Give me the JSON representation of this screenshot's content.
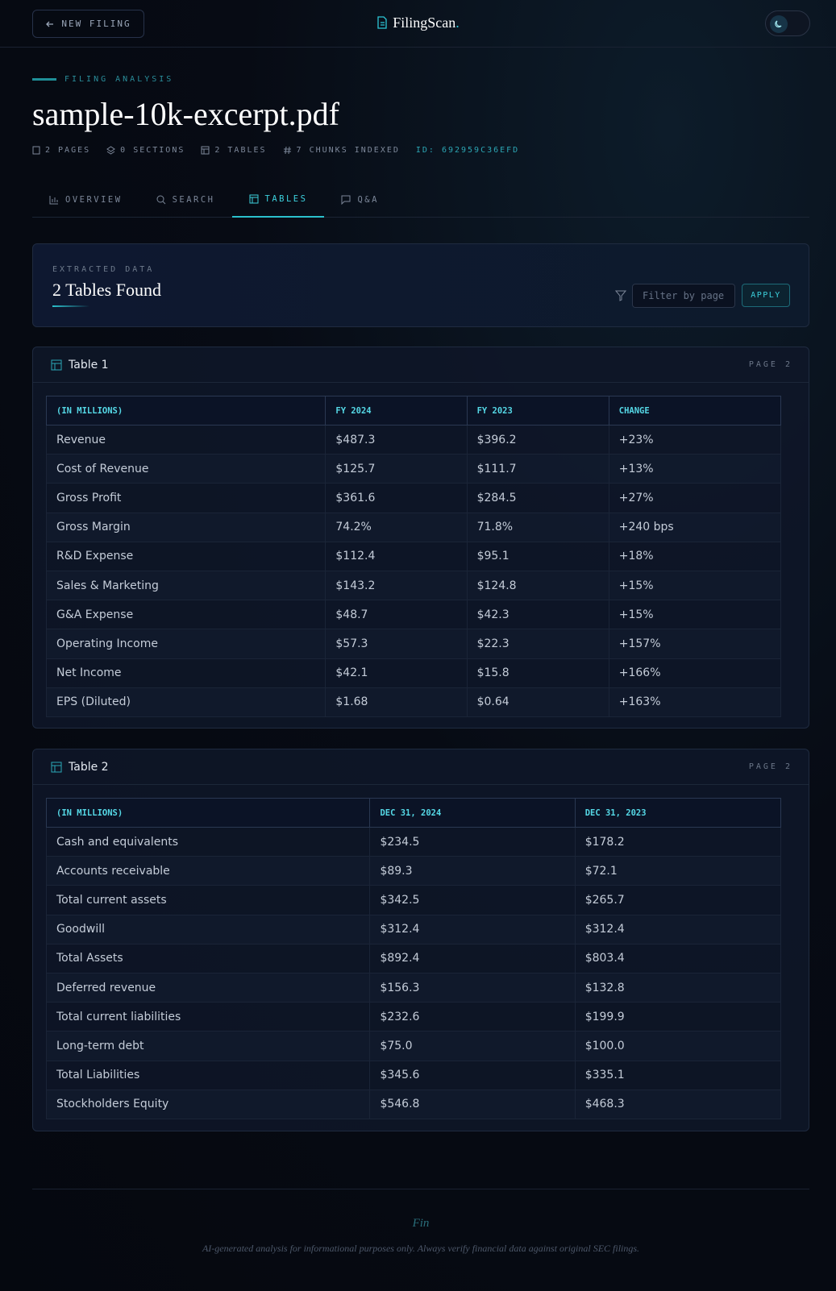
{
  "header": {
    "new_filing": "NEW FILING",
    "brand": "FilingScan",
    "brand_dot": "."
  },
  "hero": {
    "eyebrow": "FILING ANALYSIS",
    "title": "sample-10k-excerpt.pdf",
    "meta": [
      "2 PAGES",
      "0 SECTIONS",
      "2 TABLES",
      "7 CHUNKS INDEXED"
    ],
    "id": "ID: 692959C36EFD"
  },
  "tabs": [
    "OVERVIEW",
    "SEARCH",
    "TABLES",
    "Q&A"
  ],
  "panel": {
    "eyebrow": "EXTRACTED DATA",
    "title": "2 Tables Found",
    "filter_placeholder": "Filter by page",
    "apply": "APPLY"
  },
  "tables": [
    {
      "title": "Table 1",
      "page": "PAGE 2",
      "headers": [
        "(IN MILLIONS)",
        "FY 2024",
        "FY 2023",
        "CHANGE"
      ],
      "rows": [
        [
          "Revenue",
          "$487.3",
          "$396.2",
          "+23%"
        ],
        [
          "Cost of Revenue",
          "$125.7",
          "$111.7",
          "+13%"
        ],
        [
          "Gross Profit",
          "$361.6",
          "$284.5",
          "+27%"
        ],
        [
          "Gross Margin",
          "74.2%",
          "71.8%",
          "+240 bps"
        ],
        [
          "R&D Expense",
          "$112.4",
          "$95.1",
          "+18%"
        ],
        [
          "Sales & Marketing",
          "$143.2",
          "$124.8",
          "+15%"
        ],
        [
          "G&A Expense",
          "$48.7",
          "$42.3",
          "+15%"
        ],
        [
          "Operating Income",
          "$57.3",
          "$22.3",
          "+157%"
        ],
        [
          "Net Income",
          "$42.1",
          "$15.8",
          "+166%"
        ],
        [
          "EPS (Diluted)",
          "$1.68",
          "$0.64",
          "+163%"
        ]
      ]
    },
    {
      "title": "Table 2",
      "page": "PAGE 2",
      "headers": [
        "(IN MILLIONS)",
        "DEC 31, 2024",
        "DEC 31, 2023"
      ],
      "rows": [
        [
          "Cash and equivalents",
          "$234.5",
          "$178.2"
        ],
        [
          "Accounts receivable",
          "$89.3",
          "$72.1"
        ],
        [
          "Total current assets",
          "$342.5",
          "$265.7"
        ],
        [
          "Goodwill",
          "$312.4",
          "$312.4"
        ],
        [
          "Total Assets",
          "$892.4",
          "$803.4"
        ],
        [
          "Deferred revenue",
          "$156.3",
          "$132.8"
        ],
        [
          "Total current liabilities",
          "$232.6",
          "$199.9"
        ],
        [
          "Long-term debt",
          "$75.0",
          "$100.0"
        ],
        [
          "Total Liabilities",
          "$345.6",
          "$335.1"
        ],
        [
          "Stockholders Equity",
          "$546.8",
          "$468.3"
        ]
      ]
    }
  ],
  "footer": {
    "brand": "Fin",
    "disclaimer": "AI-generated analysis for informational purposes only. Always verify financial data against original SEC filings."
  }
}
